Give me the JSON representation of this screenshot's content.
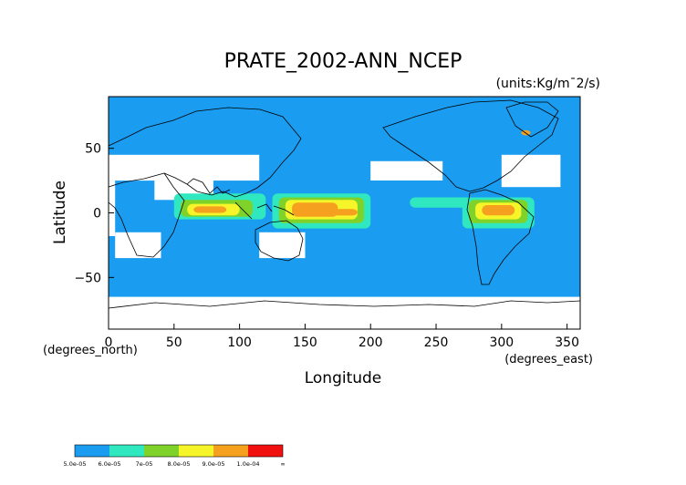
{
  "chart_data": {
    "type": "heatmap",
    "title": "PRATE_2002-ANN_NCEP",
    "units": "(units:Kg/m¯2/s)",
    "xlabel": "Longitude",
    "ylabel": "Latitude",
    "x_unit_label": "(degrees_east)",
    "y_unit_label": "(degrees_north)",
    "xlim": [
      0,
      360
    ],
    "ylim": [
      -90,
      90
    ],
    "x_ticks": [
      "0",
      "50",
      "100",
      "150",
      "200",
      "250",
      "300",
      "350"
    ],
    "y_ticks": [
      "50",
      "0",
      "−50"
    ],
    "colorbar": {
      "labels": [
        "5.0e-05",
        "6.0e-05",
        "7e-05",
        "8.0e-05",
        "9.0e-05",
        "1.0e-04",
        "∞"
      ],
      "colors": [
        "#1a9cf0",
        "#2fe8c0",
        "#7ed22a",
        "#f5f52a",
        "#f5a01e",
        "#f01010"
      ]
    },
    "regions": [
      {
        "level": 1,
        "lon": [
          0,
          360
        ],
        "lat": [
          -90,
          90
        ]
      },
      {
        "level": 0,
        "lon": [
          0,
          115
        ],
        "lat": [
          25,
          45
        ]
      },
      {
        "level": 0,
        "lon": [
          0,
          5
        ],
        "lat": [
          -18,
          25
        ]
      },
      {
        "level": 0,
        "lon": [
          35,
          80
        ],
        "lat": [
          10,
          30
        ]
      },
      {
        "level": 0,
        "lon": [
          5,
          40
        ],
        "lat": [
          -35,
          -15
        ]
      },
      {
        "level": 0,
        "lon": [
          115,
          150
        ],
        "lat": [
          -35,
          -15
        ]
      },
      {
        "level": 0,
        "lon": [
          200,
          255
        ],
        "lat": [
          25,
          40
        ]
      },
      {
        "level": 0,
        "lon": [
          300,
          345
        ],
        "lat": [
          20,
          45
        ]
      },
      {
        "level": 0,
        "lon": [
          0,
          360
        ],
        "lat": [
          -90,
          -65
        ]
      },
      {
        "level": 2,
        "lon": [
          50,
          120
        ],
        "lat": [
          -5,
          15
        ]
      },
      {
        "level": 2,
        "lon": [
          125,
          200
        ],
        "lat": [
          -12,
          15
        ]
      },
      {
        "level": 2,
        "lon": [
          230,
          290
        ],
        "lat": [
          4,
          12
        ]
      },
      {
        "level": 2,
        "lon": [
          270,
          325
        ],
        "lat": [
          -12,
          12
        ]
      },
      {
        "level": 3,
        "lon": [
          55,
          110
        ],
        "lat": [
          -3,
          10
        ]
      },
      {
        "level": 3,
        "lon": [
          130,
          195
        ],
        "lat": [
          -8,
          12
        ]
      },
      {
        "level": 3,
        "lon": [
          275,
          320
        ],
        "lat": [
          -8,
          10
        ]
      },
      {
        "level": 4,
        "lon": [
          60,
          100
        ],
        "lat": [
          -2,
          7
        ]
      },
      {
        "level": 4,
        "lon": [
          135,
          190
        ],
        "lat": [
          -5,
          10
        ]
      },
      {
        "level": 4,
        "lon": [
          280,
          315
        ],
        "lat": [
          -5,
          8
        ]
      },
      {
        "level": 5,
        "lon": [
          65,
          90
        ],
        "lat": [
          0,
          5
        ]
      },
      {
        "level": 5,
        "lon": [
          140,
          175
        ],
        "lat": [
          -3,
          8
        ]
      },
      {
        "level": 5,
        "lon": [
          150,
          190
        ],
        "lat": [
          -2,
          3
        ]
      },
      {
        "level": 5,
        "lon": [
          285,
          310
        ],
        "lat": [
          -2,
          6
        ]
      },
      {
        "level": 5,
        "lon": [
          315,
          322
        ],
        "lat": [
          60,
          64
        ]
      }
    ]
  }
}
